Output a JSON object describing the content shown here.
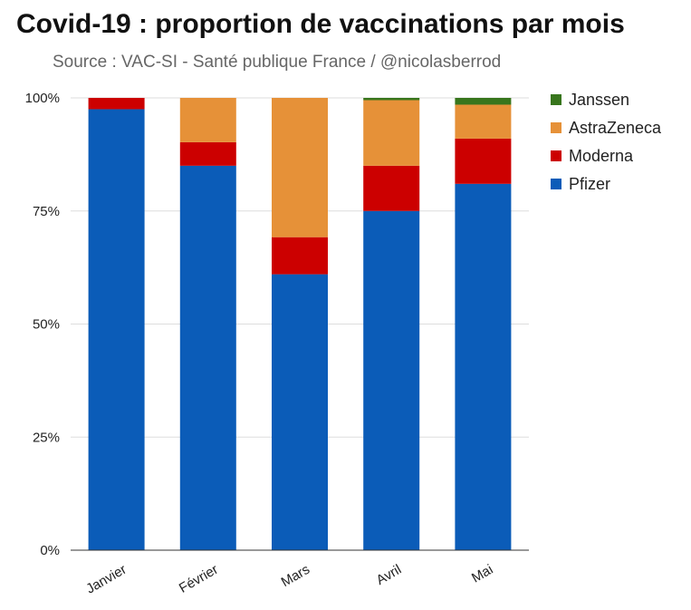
{
  "title": "Covid-19 : proportion de vaccinations par mois",
  "subtitle": "Source : VAC-SI - Santé publique France / @nicolasberrod",
  "chart_data": {
    "type": "bar",
    "stacked": true,
    "title": "Covid-19 : proportion de vaccinations par mois",
    "subtitle": "Source : VAC-SI - Santé publique France / @nicolasberrod",
    "categories": [
      "Janvier",
      "Février",
      "Mars",
      "Avril",
      "Mai"
    ],
    "series": [
      {
        "name": "Pfizer",
        "color": "#0b5cb8",
        "values": [
          97.5,
          85,
          61,
          75,
          81
        ]
      },
      {
        "name": "Moderna",
        "color": "#cc0000",
        "values": [
          2.5,
          5.2,
          8.2,
          10,
          10
        ]
      },
      {
        "name": "AstraZeneca",
        "color": "#e69138",
        "values": [
          0,
          9.8,
          30.8,
          14.5,
          7.5
        ]
      },
      {
        "name": "Janssen",
        "color": "#38761d",
        "values": [
          0,
          0,
          0,
          0.5,
          1.5
        ]
      }
    ],
    "legend_order": [
      "Janssen",
      "AstraZeneca",
      "Moderna",
      "Pfizer"
    ],
    "y_ticks": [
      "0%",
      "25%",
      "50%",
      "75%",
      "100%"
    ],
    "ylim": [
      0,
      100
    ],
    "xlabel": "",
    "ylabel": "",
    "grid": true,
    "legend_position": "right"
  }
}
